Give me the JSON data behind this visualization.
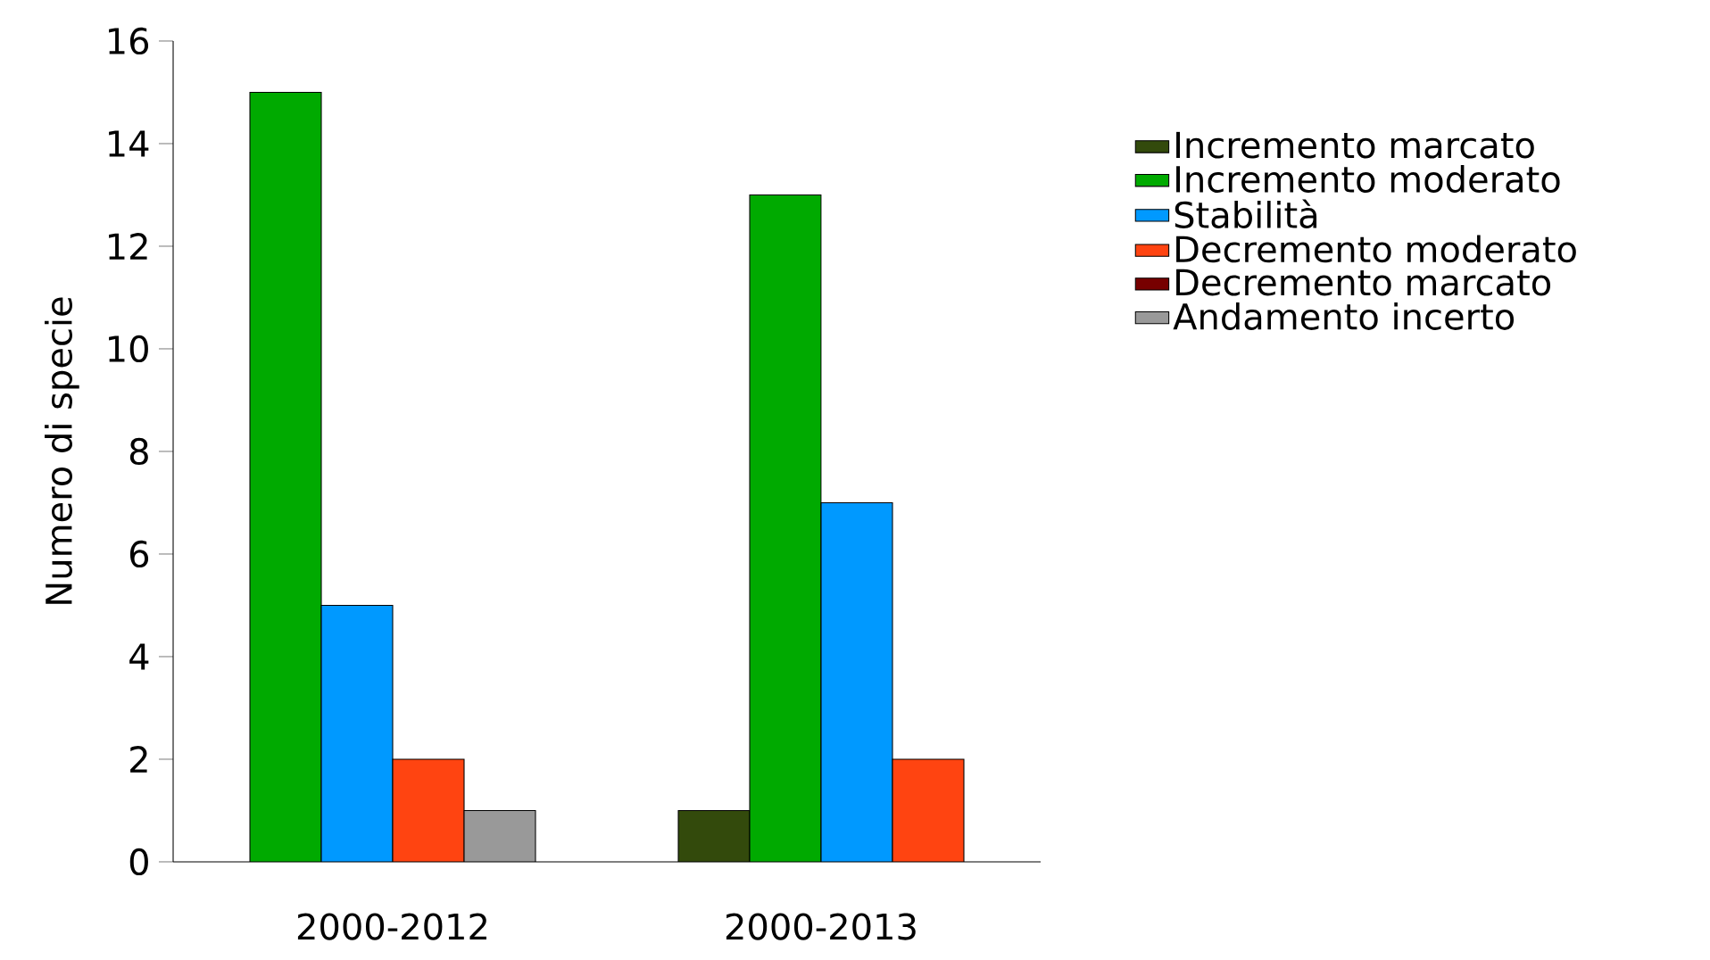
{
  "chart_data": {
    "type": "bar",
    "ylabel": "Numero di specie",
    "categories": [
      "2000-2012",
      "2000-2013"
    ],
    "series": [
      {
        "name": "Incremento marcato",
        "color": "#334a0c",
        "values": [
          null,
          1
        ]
      },
      {
        "name": "Incremento moderato",
        "color": "#00aa00",
        "values": [
          15,
          13
        ]
      },
      {
        "name": "Stabilità",
        "color": "#0099ff",
        "values": [
          5,
          7
        ]
      },
      {
        "name": "Decremento moderato",
        "color": "#ff4411",
        "values": [
          2,
          2
        ]
      },
      {
        "name": "Decremento marcato",
        "color": "#770000",
        "values": [
          null,
          null
        ]
      },
      {
        "name": "Andamento incerto",
        "color": "#999999",
        "values": [
          1,
          null
        ]
      }
    ],
    "ylim": [
      0,
      16
    ],
    "yticks": [
      0,
      2,
      4,
      6,
      8,
      10,
      12,
      14,
      16
    ],
    "legend": "right",
    "grid": false
  }
}
